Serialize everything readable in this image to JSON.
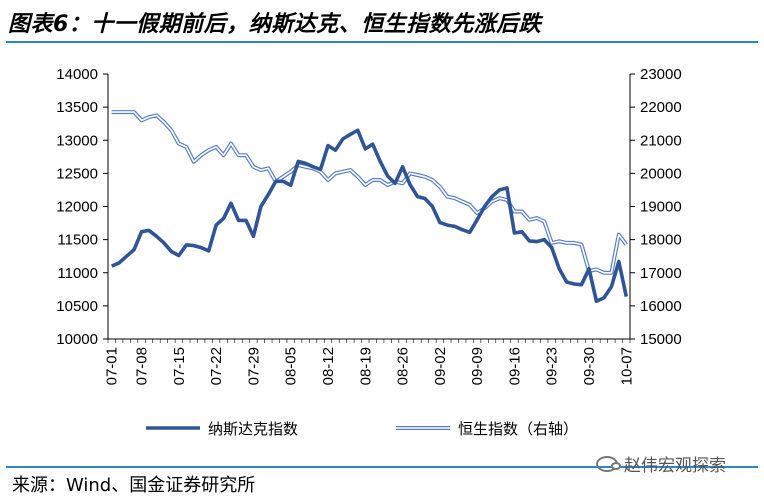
{
  "title": "图表6：十一假期前后，纳斯达克、恒生指数先涨后跌",
  "source": "来源：Wind、国金证券研究所",
  "watermark": "赵伟宏观探索",
  "colors": {
    "nasdaq": "#2f5597",
    "hangseng": "#5b7fc4",
    "rule": "#2e86c8"
  },
  "chart_data": {
    "type": "line",
    "x": [
      "07-01",
      "07-02",
      "07-03",
      "07-05",
      "07-08",
      "07-09",
      "07-10",
      "07-11",
      "07-12",
      "07-15",
      "07-16",
      "07-17",
      "07-18",
      "07-19",
      "07-22",
      "07-23",
      "07-24",
      "07-25",
      "07-26",
      "07-29",
      "07-30",
      "07-31",
      "08-01",
      "08-02",
      "08-05",
      "08-06",
      "08-07",
      "08-08",
      "08-09",
      "08-12",
      "08-13",
      "08-14",
      "08-15",
      "08-16",
      "08-19",
      "08-20",
      "08-21",
      "08-22",
      "08-23",
      "08-26",
      "08-27",
      "08-28",
      "08-29",
      "08-30",
      "09-02",
      "09-03",
      "09-04",
      "09-05",
      "09-06",
      "09-09",
      "09-10",
      "09-11",
      "09-12",
      "09-13",
      "09-16",
      "09-17",
      "09-18",
      "09-19",
      "09-20",
      "09-23",
      "09-24",
      "09-25",
      "09-26",
      "09-27",
      "09-30",
      "10-01",
      "10-02",
      "10-03",
      "10-04",
      "10-07"
    ],
    "x_ticks": [
      "07-01",
      "07-08",
      "07-15",
      "07-22",
      "07-29",
      "08-05",
      "08-12",
      "08-19",
      "08-26",
      "09-02",
      "09-09",
      "09-16",
      "09-23",
      "09-30",
      "10-07"
    ],
    "y_left": {
      "min": 10000,
      "max": 14000,
      "ticks": [
        10000,
        10500,
        11000,
        11500,
        12000,
        12500,
        13000,
        13500,
        14000
      ]
    },
    "y_right": {
      "min": 15000,
      "max": 23000,
      "ticks": [
        15000,
        16000,
        17000,
        18000,
        19000,
        20000,
        21000,
        22000,
        23000
      ],
      "label": "（右轴）"
    },
    "legend_position": "bottom",
    "series": [
      {
        "name": "纳斯达克指数",
        "axis": "left",
        "values": [
          11100,
          11150,
          11250,
          11350,
          11620,
          11640,
          11550,
          11450,
          11320,
          11260,
          11420,
          11410,
          11380,
          11330,
          11720,
          11820,
          12050,
          11790,
          11790,
          11550,
          12000,
          12180,
          12380,
          12380,
          12320,
          12680,
          12650,
          12600,
          12560,
          12920,
          12850,
          13020,
          13090,
          13150,
          12870,
          12940,
          12680,
          12460,
          12350,
          12600,
          12330,
          12150,
          12120,
          12000,
          11760,
          11720,
          11700,
          11650,
          11610,
          11800,
          12000,
          12150,
          12250,
          12280,
          11600,
          11620,
          11480,
          11470,
          11500,
          11380,
          11060,
          10860,
          10830,
          10820,
          11060,
          10570,
          10620,
          10790,
          11170,
          10640
        ]
      },
      {
        "name": "恒生指数",
        "axis": "right",
        "values": [
          21850,
          21850,
          21850,
          21850,
          21600,
          21700,
          21750,
          21550,
          21300,
          20900,
          20800,
          20350,
          20550,
          20700,
          20800,
          20550,
          20900,
          20550,
          20550,
          20200,
          20100,
          20150,
          19750,
          19900,
          20050,
          20250,
          20200,
          20150,
          20050,
          19800,
          20000,
          20050,
          20100,
          19900,
          19650,
          19800,
          19800,
          19650,
          19750,
          19700,
          20000,
          19950,
          19900,
          19800,
          19600,
          19300,
          19250,
          19150,
          19050,
          18800,
          18950,
          19150,
          19250,
          19200,
          18850,
          18850,
          18600,
          18650,
          18550,
          17900,
          17950,
          17900,
          17900,
          17850,
          17050,
          17100,
          17000,
          17000,
          18150,
          17850
        ]
      }
    ]
  }
}
